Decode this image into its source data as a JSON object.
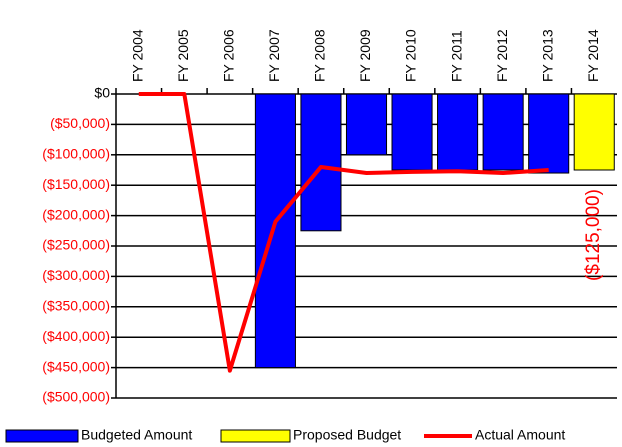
{
  "chart_data": {
    "type": "bar",
    "categories": [
      "FY 2004",
      "FY 2005",
      "FY 2006",
      "FY 2007",
      "FY 2008",
      "FY 2009",
      "FY 2010",
      "FY 2011",
      "FY 2012",
      "FY 2013",
      "FY 2014"
    ],
    "series": [
      {
        "name": "Budgeted Amount",
        "type": "bar",
        "color": "#0000ff",
        "values": [
          null,
          null,
          null,
          -450000,
          -225000,
          -100000,
          -125000,
          -125000,
          -125000,
          -130000,
          null
        ]
      },
      {
        "name": "Proposed Budget",
        "type": "bar",
        "color": "#ffff00",
        "values": [
          null,
          null,
          null,
          null,
          null,
          null,
          null,
          null,
          null,
          null,
          -125000
        ],
        "value_labels": [
          null,
          null,
          null,
          null,
          null,
          null,
          null,
          null,
          null,
          null,
          "($125,000)"
        ]
      },
      {
        "name": "Actual Amount",
        "type": "line",
        "color": "#ff0000",
        "values": [
          0,
          0,
          -455000,
          -210000,
          -120000,
          -130000,
          -128000,
          -127000,
          -130000,
          -125000,
          null
        ]
      }
    ],
    "ylim": [
      -500000,
      0
    ],
    "yticks": [
      {
        "value": 0,
        "label": "$0"
      },
      {
        "value": -50000,
        "label": "($50,000)"
      },
      {
        "value": -100000,
        "label": "($100,000)"
      },
      {
        "value": -150000,
        "label": "($150,000)"
      },
      {
        "value": -200000,
        "label": "($200,000)"
      },
      {
        "value": -250000,
        "label": "($250,000)"
      },
      {
        "value": -300000,
        "label": "($300,000)"
      },
      {
        "value": -350000,
        "label": "($350,000)"
      },
      {
        "value": -400000,
        "label": "($400,000)"
      },
      {
        "value": -450000,
        "label": "($450,000)"
      },
      {
        "value": -500000,
        "label": "($500,000)"
      }
    ],
    "negative_tick_color": "#ff0000",
    "grid": true,
    "legend": "bottom"
  }
}
